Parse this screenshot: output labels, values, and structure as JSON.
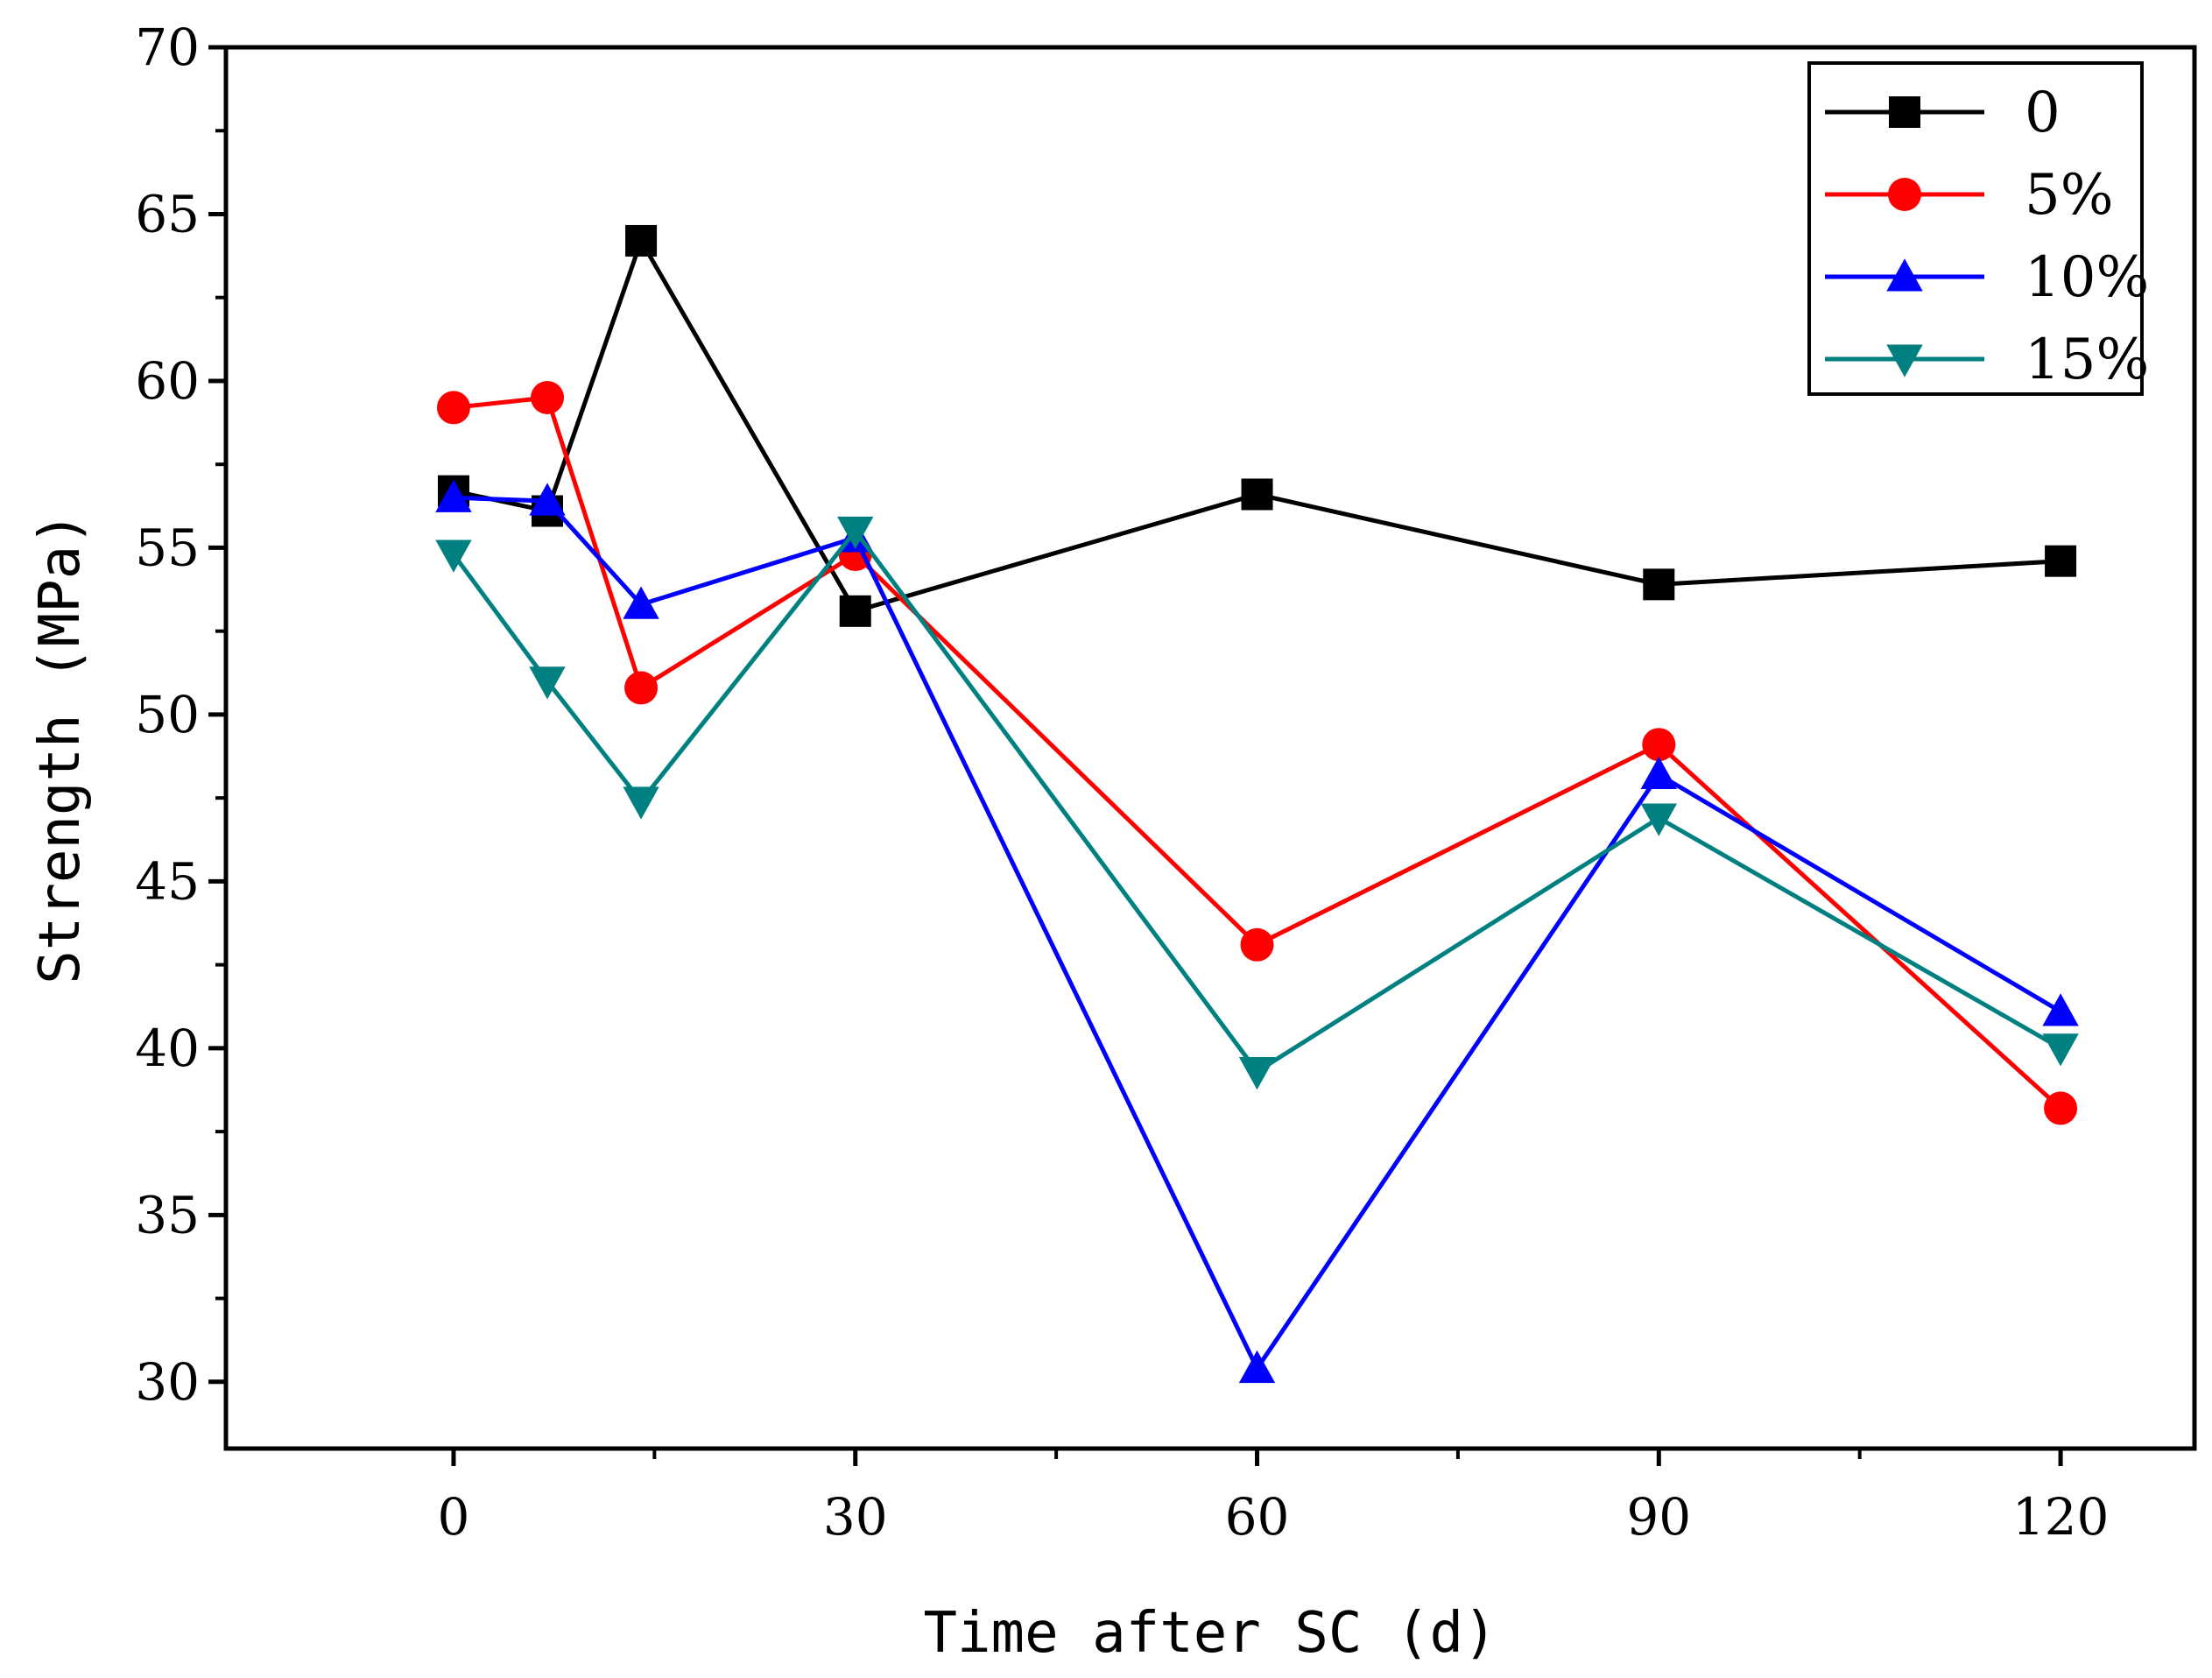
{
  "chart_data": {
    "type": "line",
    "title": "",
    "xlabel": "Time after SC (d)",
    "ylabel": "Strength (MPa)",
    "xlim": [
      -17,
      130
    ],
    "ylim": [
      28,
      70
    ],
    "xticks": [
      0,
      30,
      60,
      90,
      120
    ],
    "xtick_labels": [
      "0",
      "30",
      "60",
      "90",
      "120"
    ],
    "yticks": [
      30,
      35,
      40,
      45,
      50,
      55,
      60,
      65,
      70
    ],
    "ytick_labels": [
      "30",
      "35",
      "40",
      "45",
      "50",
      "55",
      "60",
      "65",
      "70"
    ],
    "grid": false,
    "legend_position": "top-right",
    "x": [
      0,
      7,
      14,
      30,
      60,
      90,
      120
    ],
    "series": [
      {
        "name": "0",
        "color": "#000000",
        "marker": "square",
        "values": [
          56.7,
          56.1,
          64.2,
          53.1,
          56.6,
          53.9,
          54.6
        ]
      },
      {
        "name": "5%",
        "color": "#ff0000",
        "marker": "circle",
        "values": [
          59.2,
          59.5,
          50.8,
          54.8,
          43.1,
          49.1,
          38.2
        ]
      },
      {
        "name": "10%",
        "color": "#0000ff",
        "marker": "triangle-up",
        "values": [
          56.5,
          56.4,
          53.3,
          55.3,
          30.4,
          48.2,
          41.1
        ]
      },
      {
        "name": "15%",
        "color": "#008080",
        "marker": "triangle-down",
        "values": [
          54.8,
          51.0,
          47.4,
          55.5,
          39.3,
          46.9,
          40.0
        ]
      }
    ]
  }
}
